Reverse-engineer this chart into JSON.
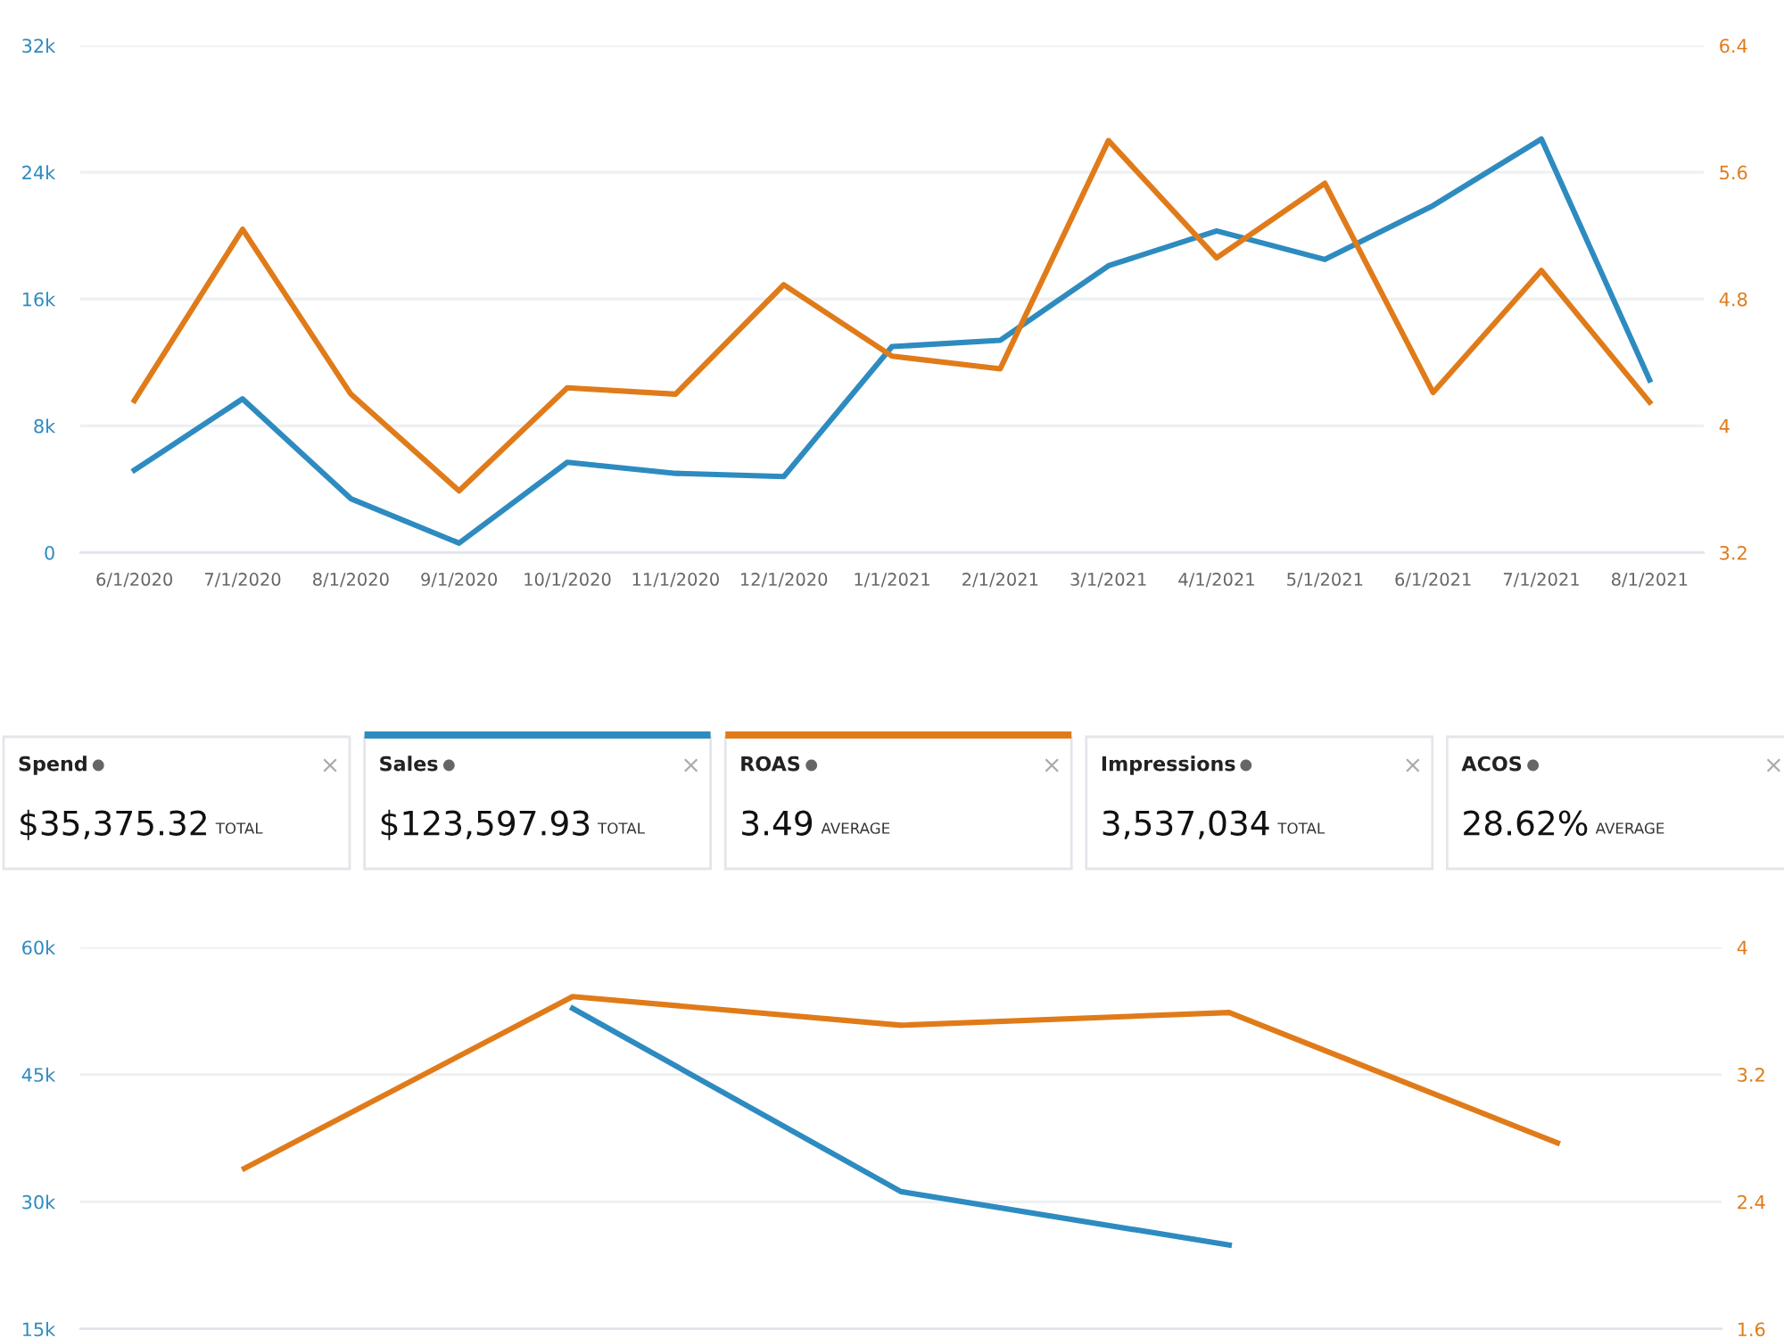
{
  "chart_data": [
    {
      "type": "line",
      "categories": [
        "6/1/2020",
        "7/1/2020",
        "8/1/2020",
        "9/1/2020",
        "10/1/2020",
        "11/1/2020",
        "12/1/2020",
        "1/1/2021",
        "2/1/2021",
        "3/1/2021",
        "4/1/2021",
        "5/1/2021",
        "6/1/2021",
        "7/1/2021",
        "8/1/2021"
      ],
      "series": [
        {
          "color": "#2e8bc0",
          "values": [
            5200,
            9700,
            3400,
            600,
            5700,
            5000,
            4800,
            13000,
            13400,
            18100,
            20300,
            18500,
            21900,
            26100,
            10900
          ]
        },
        {
          "color": "#e07b1a",
          "axis": "y2",
          "values": [
            4.16,
            5.24,
            4.2,
            3.59,
            4.24,
            4.2,
            4.89,
            4.44,
            4.36,
            5.8,
            5.06,
            5.53,
            4.21,
            4.98,
            4.15
          ]
        }
      ],
      "ylim": [
        0,
        32000
      ],
      "yticks": [
        {
          "value": 0,
          "label": "0"
        },
        {
          "value": 8000,
          "label": "8k"
        },
        {
          "value": 16000,
          "label": "16k"
        },
        {
          "value": 24000,
          "label": "24k"
        },
        {
          "value": 32000,
          "label": "32k"
        }
      ],
      "y2lim": [
        3.2,
        6.4
      ],
      "y2ticks": [
        3.2,
        4,
        4.8,
        5.6,
        6.4
      ],
      "grid": "y",
      "marker": "none",
      "line_style": "solid"
    },
    {
      "type": "other",
      "annotations": [
        "Spend",
        "$35,375.32",
        "TOTAL",
        "Sales",
        "$123,597.93",
        "TOTAL",
        "ROAS",
        "3.49",
        "AVERAGE",
        "Impressions",
        "3,537,034",
        "TOTAL",
        "ACOS",
        "28.62%",
        "AVERAGE"
      ],
      "colors": [
        null,
        "#2e8bc0",
        "#e07b1a",
        null,
        null
      ]
    },
    {
      "type": "line",
      "categories": [
        null,
        null,
        null,
        null,
        null
      ],
      "series": [
        {
          "color": "#2e8bc0",
          "values": [
            null,
            52800,
            31200,
            24900,
            null
          ]
        },
        {
          "color": "#e07b1a",
          "axis": "y2",
          "values": [
            2.61,
            3.69,
            3.51,
            3.59,
            2.77
          ]
        }
      ],
      "ylim": [
        15000,
        60000
      ],
      "yticks": [
        {
          "value": 15000,
          "label": "15k"
        },
        {
          "value": 30000,
          "label": "30k"
        },
        {
          "value": 45000,
          "label": "45k"
        },
        {
          "value": 60000,
          "label": "60k"
        }
      ],
      "y2lim": [
        1.6,
        4
      ],
      "y2ticks": [
        1.6,
        2.4,
        3.2,
        4
      ],
      "grid": "y",
      "marker": "none",
      "line_style": "solid"
    }
  ]
}
